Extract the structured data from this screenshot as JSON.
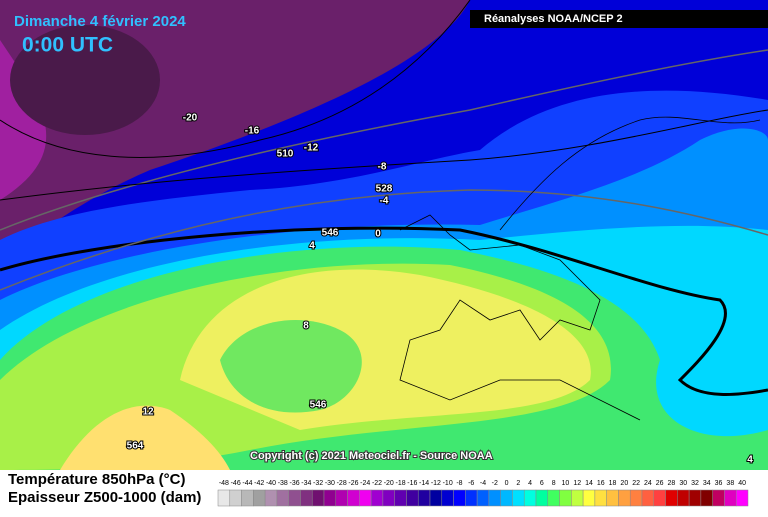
{
  "header": {
    "title": "Dimanche 4 février 2024",
    "time": "0:00 UTC",
    "source_box": "Réanalyses NOAA/NCEP 2"
  },
  "contour_labels": [
    -20,
    -16,
    510,
    -12,
    -8,
    528,
    -4,
    546,
    0,
    4,
    8,
    546,
    12,
    564,
    4
  ],
  "copyright": "Copyright (c) 2021 Meteociel.fr - Source NOAA",
  "legend": {
    "line1": "Température 850hPa (°C)",
    "line2": "Epaisseur Z500-1000 (dam)",
    "scale": [
      -48,
      -46,
      -44,
      -42,
      -40,
      -38,
      -36,
      -34,
      -32,
      -30,
      -28,
      -26,
      -24,
      -22,
      -20,
      -18,
      -16,
      -14,
      -12,
      -10,
      -8,
      -6,
      -4,
      -2,
      0,
      2,
      4,
      6,
      8,
      10,
      12,
      14,
      16,
      18,
      20,
      22,
      24,
      26,
      28,
      30,
      32,
      34,
      36,
      38,
      40
    ],
    "colors": [
      "#e8e8e8",
      "#d0d0d0",
      "#b8b8b8",
      "#a0a0a0",
      "#b090b0",
      "#a070a0",
      "#905090",
      "#803080",
      "#701070",
      "#900090",
      "#b000b0",
      "#d000d0",
      "#f000f0",
      "#a000d0",
      "#8000c0",
      "#6000b0",
      "#4000a0",
      "#2000a0",
      "#0000a0",
      "#0000d0",
      "#0000ff",
      "#0030ff",
      "#0060ff",
      "#0090ff",
      "#00b8ff",
      "#00e0ff",
      "#00ffe0",
      "#00ffa0",
      "#40ff60",
      "#80ff40",
      "#c0ff40",
      "#ffff40",
      "#ffe040",
      "#ffc040",
      "#ffa040",
      "#ff8040",
      "#ff6040",
      "#ff4040",
      "#e00000",
      "#c00000",
      "#a00000",
      "#800000",
      "#c00060",
      "#e000c0",
      "#ff00ff"
    ]
  }
}
